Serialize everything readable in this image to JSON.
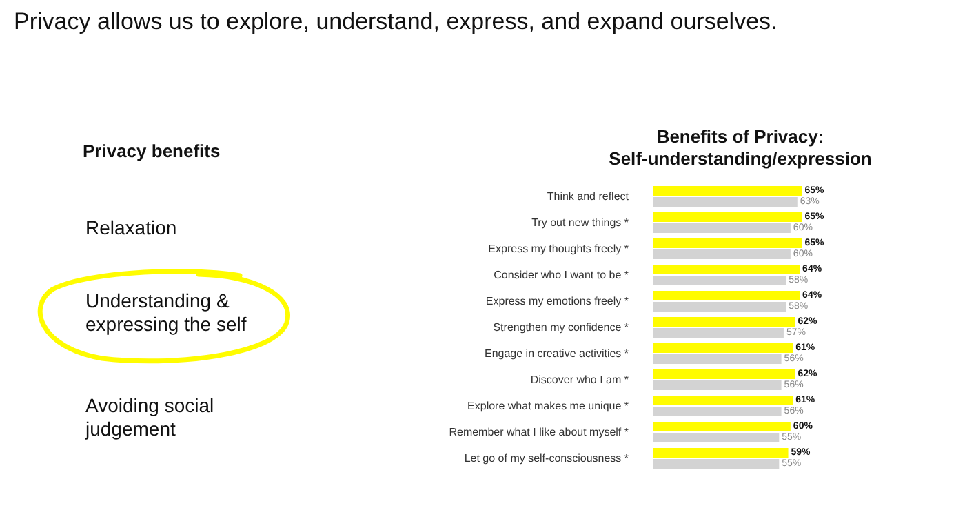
{
  "chart_data": {
    "type": "bar",
    "orientation": "horizontal",
    "title": "Benefits of Privacy:\nSelf-understanding/expression",
    "annotations": [
      "Privacy allows us to explore, understand, express, and expand ourselves.",
      "Privacy benefits",
      "Relaxation",
      "Understanding & expressing the self",
      "Avoiding social judgement"
    ],
    "categories": [
      "Think and reflect",
      "Try out new things *",
      "Express my thoughts freely *",
      "Consider who I want to be *",
      "Express my emotions freely *",
      "Strengthen my confidence *",
      "Engage in creative activities *",
      "Discover who I am *",
      "Explore what makes me unique *",
      "Remember what I like about myself *",
      "Let go of my self-consciousness *"
    ],
    "series": [
      {
        "color": "#fffc00",
        "values": [
          65,
          65,
          65,
          64,
          64,
          62,
          61,
          62,
          61,
          60,
          59
        ],
        "value_labels": [
          "65%",
          "65%",
          "65%",
          "64%",
          "64%",
          "62%",
          "61%",
          "62%",
          "61%",
          "60%",
          "59%"
        ]
      },
      {
        "color": "#d3d3d3",
        "values": [
          63,
          60,
          60,
          58,
          58,
          57,
          56,
          56,
          56,
          55,
          55
        ],
        "value_labels": [
          "63%",
          "60%",
          "60%",
          "58%",
          "58%",
          "57%",
          "56%",
          "56%",
          "56%",
          "55%",
          "55%"
        ]
      }
    ],
    "grid": false
  }
}
